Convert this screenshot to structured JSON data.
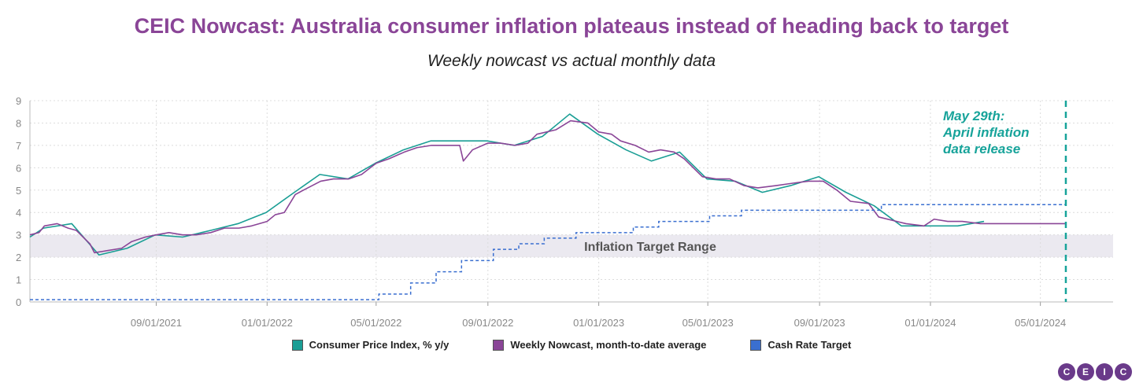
{
  "title": "CEIC Nowcast: Australia consumer inflation plateaus instead of heading back to target",
  "subtitle": "Weekly nowcast vs actual monthly data",
  "colors": {
    "cpi": "#1a9e95",
    "nowcast": "#8a4597",
    "cash": "#3a6fd0",
    "target_band": "#ebe9f0",
    "annotation": "#17a39a",
    "title": "#8a4597"
  },
  "annotation": {
    "line1": "May 29th:",
    "line2": "April inflation",
    "line3": "data release",
    "date": "2024-05-29"
  },
  "band_label": "Inflation Target Range",
  "logo": [
    "C",
    "E",
    "I",
    "C"
  ],
  "chart_data": {
    "type": "line",
    "x_ticks": [
      "09/01/2021",
      "01/01/2022",
      "05/01/2022",
      "09/01/2022",
      "01/01/2023",
      "05/01/2023",
      "09/01/2023",
      "01/01/2024",
      "05/01/2024"
    ],
    "x_tick_dates": [
      "2021-09-01",
      "2022-01-01",
      "2022-05-01",
      "2022-09-01",
      "2023-01-01",
      "2023-05-01",
      "2023-09-01",
      "2024-01-01",
      "2024-05-01"
    ],
    "xlim": [
      "2021-04-15",
      "2024-07-20"
    ],
    "ylim": [
      0,
      9
    ],
    "y_ticks": [
      0,
      1,
      2,
      3,
      4,
      5,
      6,
      7,
      8,
      9
    ],
    "grid": true,
    "legend_position": "bottom",
    "target_range": [
      2,
      3
    ],
    "series": [
      {
        "name": "Consumer Price Index, % y/y",
        "key": "cpi",
        "points": [
          [
            "2021-04-15",
            2.9
          ],
          [
            "2021-04-30",
            3.3
          ],
          [
            "2021-05-31",
            3.5
          ],
          [
            "2021-06-30",
            2.1
          ],
          [
            "2021-07-31",
            2.4
          ],
          [
            "2021-08-31",
            3.0
          ],
          [
            "2021-09-30",
            2.9
          ],
          [
            "2021-10-31",
            3.2
          ],
          [
            "2021-11-30",
            3.5
          ],
          [
            "2021-12-31",
            4.0
          ],
          [
            "2022-01-31",
            4.9
          ],
          [
            "2022-02-28",
            5.7
          ],
          [
            "2022-03-31",
            5.5
          ],
          [
            "2022-04-30",
            6.2
          ],
          [
            "2022-05-31",
            6.8
          ],
          [
            "2022-06-30",
            7.2
          ],
          [
            "2022-07-31",
            7.2
          ],
          [
            "2022-08-31",
            7.2
          ],
          [
            "2022-09-30",
            7.0
          ],
          [
            "2022-10-31",
            7.4
          ],
          [
            "2022-11-30",
            8.4
          ],
          [
            "2022-12-31",
            7.5
          ],
          [
            "2023-01-31",
            6.8
          ],
          [
            "2023-02-28",
            6.3
          ],
          [
            "2023-03-31",
            6.7
          ],
          [
            "2023-04-30",
            5.5
          ],
          [
            "2023-05-31",
            5.4
          ],
          [
            "2023-06-30",
            4.9
          ],
          [
            "2023-07-31",
            5.2
          ],
          [
            "2023-08-31",
            5.6
          ],
          [
            "2023-09-30",
            4.9
          ],
          [
            "2023-10-31",
            4.3
          ],
          [
            "2023-11-30",
            3.4
          ],
          [
            "2023-12-31",
            3.4
          ],
          [
            "2024-01-31",
            3.4
          ],
          [
            "2024-02-29",
            3.6
          ]
        ]
      },
      {
        "name": "Weekly Nowcast, month-to-date average",
        "key": "nowcast",
        "points": [
          [
            "2021-04-15",
            3.0
          ],
          [
            "2021-04-25",
            3.1
          ],
          [
            "2021-05-01",
            3.4
          ],
          [
            "2021-05-15",
            3.5
          ],
          [
            "2021-05-27",
            3.3
          ],
          [
            "2021-06-05",
            3.2
          ],
          [
            "2021-06-20",
            2.6
          ],
          [
            "2021-06-25",
            2.2
          ],
          [
            "2021-07-10",
            2.3
          ],
          [
            "2021-07-25",
            2.4
          ],
          [
            "2021-08-05",
            2.7
          ],
          [
            "2021-08-20",
            2.9
          ],
          [
            "2021-09-01",
            3.0
          ],
          [
            "2021-09-15",
            3.1
          ],
          [
            "2021-09-30",
            3.0
          ],
          [
            "2021-10-15",
            3.0
          ],
          [
            "2021-10-31",
            3.1
          ],
          [
            "2021-11-15",
            3.3
          ],
          [
            "2021-12-01",
            3.3
          ],
          [
            "2021-12-15",
            3.4
          ],
          [
            "2022-01-01",
            3.6
          ],
          [
            "2022-01-10",
            3.9
          ],
          [
            "2022-01-20",
            4.0
          ],
          [
            "2022-02-01",
            4.8
          ],
          [
            "2022-02-10",
            5.0
          ],
          [
            "2022-03-01",
            5.4
          ],
          [
            "2022-03-15",
            5.5
          ],
          [
            "2022-04-01",
            5.5
          ],
          [
            "2022-04-15",
            5.7
          ],
          [
            "2022-05-01",
            6.2
          ],
          [
            "2022-05-15",
            6.4
          ],
          [
            "2022-06-01",
            6.7
          ],
          [
            "2022-06-15",
            6.9
          ],
          [
            "2022-07-01",
            7.0
          ],
          [
            "2022-07-15",
            7.0
          ],
          [
            "2022-08-01",
            7.0
          ],
          [
            "2022-08-05",
            6.3
          ],
          [
            "2022-08-15",
            6.8
          ],
          [
            "2022-09-01",
            7.1
          ],
          [
            "2022-09-15",
            7.1
          ],
          [
            "2022-10-01",
            7.0
          ],
          [
            "2022-10-15",
            7.1
          ],
          [
            "2022-10-25",
            7.5
          ],
          [
            "2022-11-15",
            7.7
          ],
          [
            "2022-12-01",
            8.1
          ],
          [
            "2022-12-20",
            8.0
          ],
          [
            "2023-01-01",
            7.6
          ],
          [
            "2023-01-15",
            7.5
          ],
          [
            "2023-01-25",
            7.2
          ],
          [
            "2023-02-10",
            7.0
          ],
          [
            "2023-02-25",
            6.7
          ],
          [
            "2023-03-10",
            6.8
          ],
          [
            "2023-03-25",
            6.7
          ],
          [
            "2023-04-05",
            6.4
          ],
          [
            "2023-04-15",
            6.0
          ],
          [
            "2023-04-25",
            5.6
          ],
          [
            "2023-05-10",
            5.5
          ],
          [
            "2023-05-25",
            5.5
          ],
          [
            "2023-06-10",
            5.2
          ],
          [
            "2023-06-25",
            5.1
          ],
          [
            "2023-07-15",
            5.2
          ],
          [
            "2023-08-01",
            5.3
          ],
          [
            "2023-08-20",
            5.4
          ],
          [
            "2023-09-05",
            5.4
          ],
          [
            "2023-09-20",
            5.0
          ],
          [
            "2023-10-05",
            4.5
          ],
          [
            "2023-10-25",
            4.4
          ],
          [
            "2023-11-05",
            3.8
          ],
          [
            "2023-11-25",
            3.6
          ],
          [
            "2023-12-05",
            3.5
          ],
          [
            "2023-12-25",
            3.4
          ],
          [
            "2024-01-05",
            3.7
          ],
          [
            "2024-01-20",
            3.6
          ],
          [
            "2024-02-05",
            3.6
          ],
          [
            "2024-02-25",
            3.5
          ],
          [
            "2024-03-15",
            3.5
          ],
          [
            "2024-04-01",
            3.5
          ],
          [
            "2024-04-20",
            3.5
          ],
          [
            "2024-05-10",
            3.5
          ],
          [
            "2024-05-29",
            3.5
          ]
        ]
      },
      {
        "name": "Cash Rate Target",
        "key": "cash",
        "step": true,
        "points": [
          [
            "2021-04-15",
            0.1
          ],
          [
            "2022-05-04",
            0.35
          ],
          [
            "2022-06-08",
            0.85
          ],
          [
            "2022-07-06",
            1.35
          ],
          [
            "2022-08-03",
            1.85
          ],
          [
            "2022-09-07",
            2.35
          ],
          [
            "2022-10-05",
            2.6
          ],
          [
            "2022-11-02",
            2.85
          ],
          [
            "2022-12-07",
            3.1
          ],
          [
            "2023-02-08",
            3.35
          ],
          [
            "2023-03-08",
            3.6
          ],
          [
            "2023-05-03",
            3.85
          ],
          [
            "2023-06-07",
            4.1
          ],
          [
            "2023-11-08",
            4.35
          ],
          [
            "2024-05-29",
            4.35
          ]
        ]
      }
    ]
  }
}
